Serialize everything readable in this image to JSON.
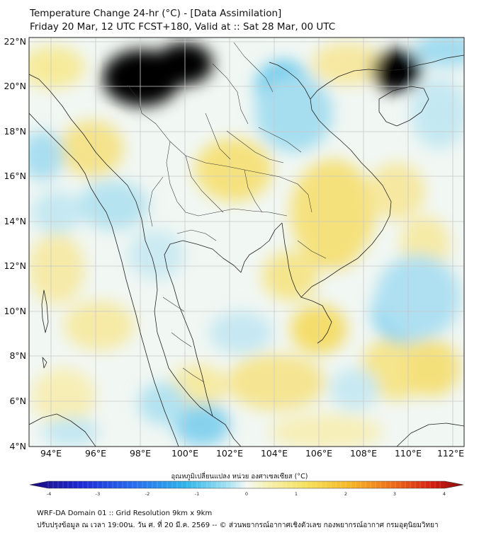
{
  "title": {
    "line1": "Temperature Change 24-hr (°C) - [Data Assimilation]",
    "line2": "Friday 20 Mar, 12 UTC FCST+180, Valid at :: Sat 28 Mar, 00 UTC"
  },
  "axes": {
    "lat_labels": [
      "22°N",
      "20°N",
      "18°N",
      "16°N",
      "14°N",
      "12°N",
      "10°N",
      "8°N",
      "6°N",
      "4°N"
    ],
    "lon_labels": [
      "94°E",
      "96°E",
      "98°E",
      "100°E",
      "102°E",
      "104°E",
      "106°E",
      "108°E",
      "110°E",
      "112°E"
    ],
    "lat_range": [
      4,
      22.2
    ],
    "lon_range": [
      93,
      112.5
    ]
  },
  "colorbar": {
    "title": "อุณหภูมิเปลี่ยนแปลง หน่วย องศาเซลเซียส (°C)",
    "tick_labels": [
      "-4",
      "-3",
      "-2",
      "-1",
      "0",
      "1",
      "2",
      "3",
      "4"
    ],
    "range": [
      -4,
      4
    ]
  },
  "footer": {
    "line1": "WRF-DA Domain 01 :: Grid Resolution 9km x 9km",
    "line2": "ปรับปรุงข้อมูล ณ เวลา 19:00น. วัน ศ. ที่ 20 มี.ค. 2569 -- © ส่วนพยากรณ์อากาศเชิงตัวเลข กองพยากรณ์อากาศ กรมอุตุนิยมวิทยา"
  },
  "colors": {
    "warm": "#f5e48a",
    "warm_strong": "#f3d64a",
    "cool": "#9fdcf0",
    "cool_strong": "#6cc6ec",
    "neutral": "#eef6f4",
    "coastline": "#222222",
    "grid": "#c8c8c8"
  }
}
